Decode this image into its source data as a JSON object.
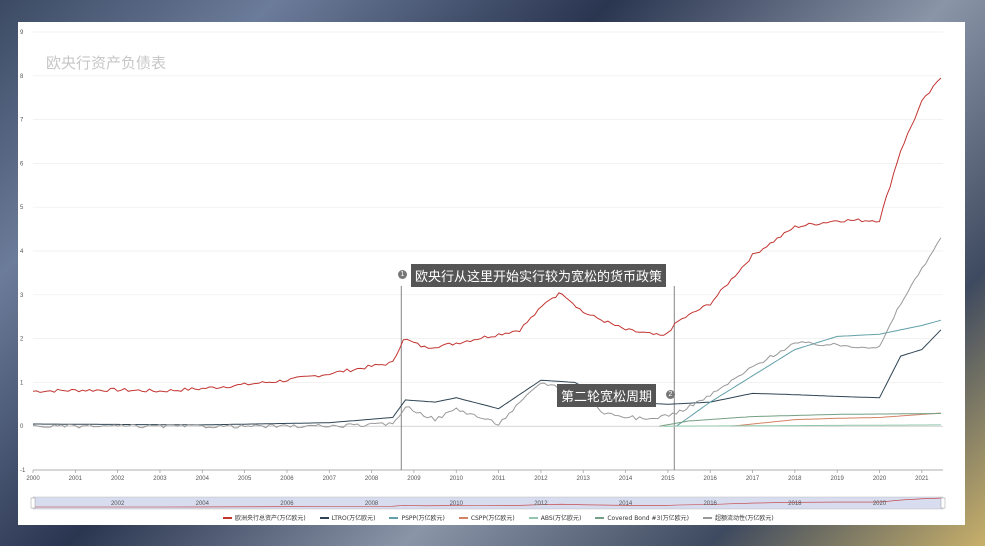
{
  "chart_data": {
    "type": "line",
    "title": "欧央行资产负债表",
    "x_ticks": [
      "2000",
      "2001",
      "2002",
      "2003",
      "2004",
      "2005",
      "2006",
      "2007",
      "2008",
      "2009",
      "2010",
      "2011",
      "2012",
      "2013",
      "2014",
      "2015",
      "2016",
      "2017",
      "2018",
      "2019",
      "2020",
      "2021"
    ],
    "y_ticks": [
      "-1",
      "0",
      "1",
      "2",
      "3",
      "4",
      "5",
      "6",
      "7",
      "8",
      "9"
    ],
    "xlim": [
      2000,
      2021.5
    ],
    "ylim": [
      -1,
      9
    ],
    "grid": true,
    "legend_position": "bottom",
    "slider_ticks": [
      "2002",
      "2004",
      "2006",
      "2008",
      "2010",
      "2012",
      "2014",
      "2016",
      "2018",
      "2020"
    ],
    "series": [
      {
        "name": "欧洲央行总资产(万亿欧元)",
        "color": "#c23531",
        "points": [
          [
            2000,
            0.8
          ],
          [
            2001,
            0.82
          ],
          [
            2002,
            0.83
          ],
          [
            2003,
            0.8
          ],
          [
            2004,
            0.86
          ],
          [
            2005,
            0.95
          ],
          [
            2006,
            1.05
          ],
          [
            2007,
            1.2
          ],
          [
            2008.5,
            1.45
          ],
          [
            2008.75,
            2.0
          ],
          [
            2009.25,
            1.8
          ],
          [
            2009.75,
            1.85
          ],
          [
            2010.5,
            2.0
          ],
          [
            2011.5,
            2.2
          ],
          [
            2012.2,
            2.9
          ],
          [
            2012.5,
            3.05
          ],
          [
            2013,
            2.6
          ],
          [
            2014,
            2.2
          ],
          [
            2014.9,
            2.05
          ],
          [
            2015.25,
            2.4
          ],
          [
            2016,
            2.8
          ],
          [
            2017,
            3.9
          ],
          [
            2018,
            4.55
          ],
          [
            2019,
            4.7
          ],
          [
            2020,
            4.7
          ],
          [
            2020.5,
            6.3
          ],
          [
            2021,
            7.4
          ],
          [
            2021.45,
            7.95
          ]
        ]
      },
      {
        "name": "LTRO(万亿欧元)",
        "color": "#2f4554",
        "points": [
          [
            2000,
            0.05
          ],
          [
            2004,
            0.03
          ],
          [
            2007,
            0.08
          ],
          [
            2008.5,
            0.2
          ],
          [
            2008.8,
            0.6
          ],
          [
            2009.5,
            0.55
          ],
          [
            2010,
            0.65
          ],
          [
            2011,
            0.4
          ],
          [
            2012,
            1.05
          ],
          [
            2012.8,
            1.0
          ],
          [
            2013.5,
            0.65
          ],
          [
            2014,
            0.55
          ],
          [
            2015,
            0.5
          ],
          [
            2016,
            0.55
          ],
          [
            2017,
            0.75
          ],
          [
            2018,
            0.72
          ],
          [
            2019,
            0.68
          ],
          [
            2020,
            0.65
          ],
          [
            2020.5,
            1.6
          ],
          [
            2021,
            1.75
          ],
          [
            2021.45,
            2.2
          ]
        ]
      },
      {
        "name": "PSPP(万亿欧元)",
        "color": "#61a0a8",
        "points": [
          [
            2015.2,
            0
          ],
          [
            2016,
            0.55
          ],
          [
            2017,
            1.15
          ],
          [
            2018,
            1.75
          ],
          [
            2019,
            2.05
          ],
          [
            2020,
            2.1
          ],
          [
            2021,
            2.3
          ],
          [
            2021.45,
            2.42
          ]
        ]
      },
      {
        "name": "CSPP(万亿欧元)",
        "color": "#d48265",
        "points": [
          [
            2016.5,
            0
          ],
          [
            2018,
            0.15
          ],
          [
            2019,
            0.18
          ],
          [
            2020,
            0.2
          ],
          [
            2021.45,
            0.3
          ]
        ]
      },
      {
        "name": "ABS(万亿欧元)",
        "color": "#91c7ae",
        "points": [
          [
            2014.9,
            0
          ],
          [
            2021.45,
            0.03
          ]
        ]
      },
      {
        "name": "Covered Bond #3(万亿欧元)",
        "color": "#749f83",
        "points": [
          [
            2014.8,
            0
          ],
          [
            2015.5,
            0.12
          ],
          [
            2017,
            0.22
          ],
          [
            2019,
            0.27
          ],
          [
            2021.45,
            0.29
          ]
        ]
      },
      {
        "name": "超额流动性(万亿欧元)",
        "color": "#999999",
        "points": [
          [
            2000,
            0
          ],
          [
            2007,
            0
          ],
          [
            2008.5,
            0.05
          ],
          [
            2008.8,
            0.45
          ],
          [
            2009.5,
            0.15
          ],
          [
            2010,
            0.4
          ],
          [
            2011,
            0.05
          ],
          [
            2012,
            1.0
          ],
          [
            2012.8,
            0.8
          ],
          [
            2013.5,
            0.3
          ],
          [
            2014.5,
            0.15
          ],
          [
            2015.2,
            0.3
          ],
          [
            2016,
            0.7
          ],
          [
            2017,
            1.35
          ],
          [
            2018,
            1.9
          ],
          [
            2019,
            1.85
          ],
          [
            2020,
            1.8
          ],
          [
            2020.5,
            2.8
          ],
          [
            2021,
            3.6
          ],
          [
            2021.45,
            4.3
          ]
        ]
      }
    ]
  },
  "annotations": [
    {
      "num": "1",
      "text": "欧央行从这里开始实行较为宽松的货币政策"
    },
    {
      "num": "2",
      "text": "第二轮宽松周期"
    }
  ]
}
